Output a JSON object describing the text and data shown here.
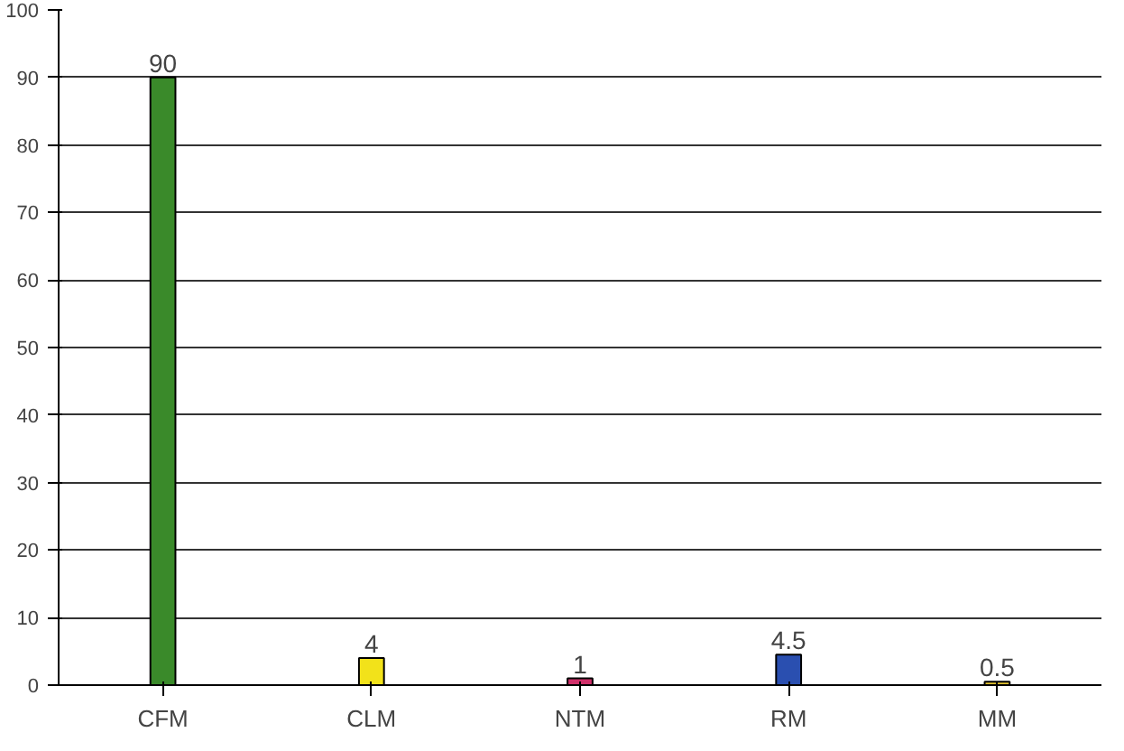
{
  "chart_data": {
    "type": "bar",
    "categories": [
      "CFM",
      "CLM",
      "NTM",
      "RM",
      "MM"
    ],
    "values": [
      90,
      4,
      1,
      4.5,
      0.5
    ],
    "colors": [
      "#3a8a2a",
      "#f2e21a",
      "#d0306a",
      "#2a4fb0",
      "#e0c030"
    ],
    "ylim": [
      0,
      100
    ],
    "yticks": [
      0,
      10,
      20,
      30,
      40,
      50,
      60,
      70,
      80,
      90,
      100
    ],
    "grid": "y",
    "data_labels": true
  }
}
